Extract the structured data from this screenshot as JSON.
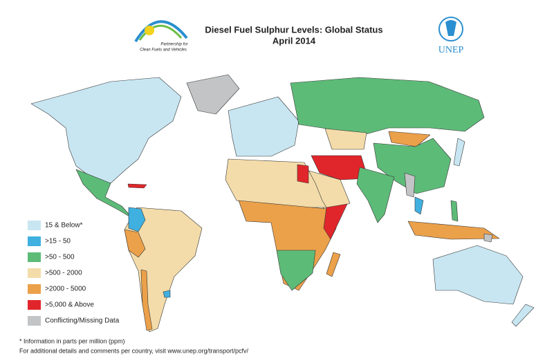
{
  "header": {
    "title": "Diesel Fuel Sulphur Levels: Global Status",
    "subtitle": "April 2014",
    "partner_logo_text": [
      "Partnership for",
      "Clean Fuels and Vehicles"
    ],
    "unep_logo_text": "UNEP"
  },
  "legend": {
    "items": [
      {
        "label": "15 & Below*",
        "color": "#c8e6f2"
      },
      {
        "label": ">15 - 50",
        "color": "#3fb0e0"
      },
      {
        "label": ">50 - 500",
        "color": "#5dbb78"
      },
      {
        "label": ">500 - 2000",
        "color": "#f3dcaa"
      },
      {
        "label": ">2000 - 5000",
        "color": "#eba04a"
      },
      {
        "label": ">5,000 & Above",
        "color": "#e0262b"
      },
      {
        "label": "Conflicting/Missing Data",
        "color": "#c2c4c6"
      }
    ]
  },
  "footnotes": [
    "* Information in parts per million (ppm)",
    "For additional details and comments per country, visit www.unep.org/transport/pcfv/"
  ]
}
